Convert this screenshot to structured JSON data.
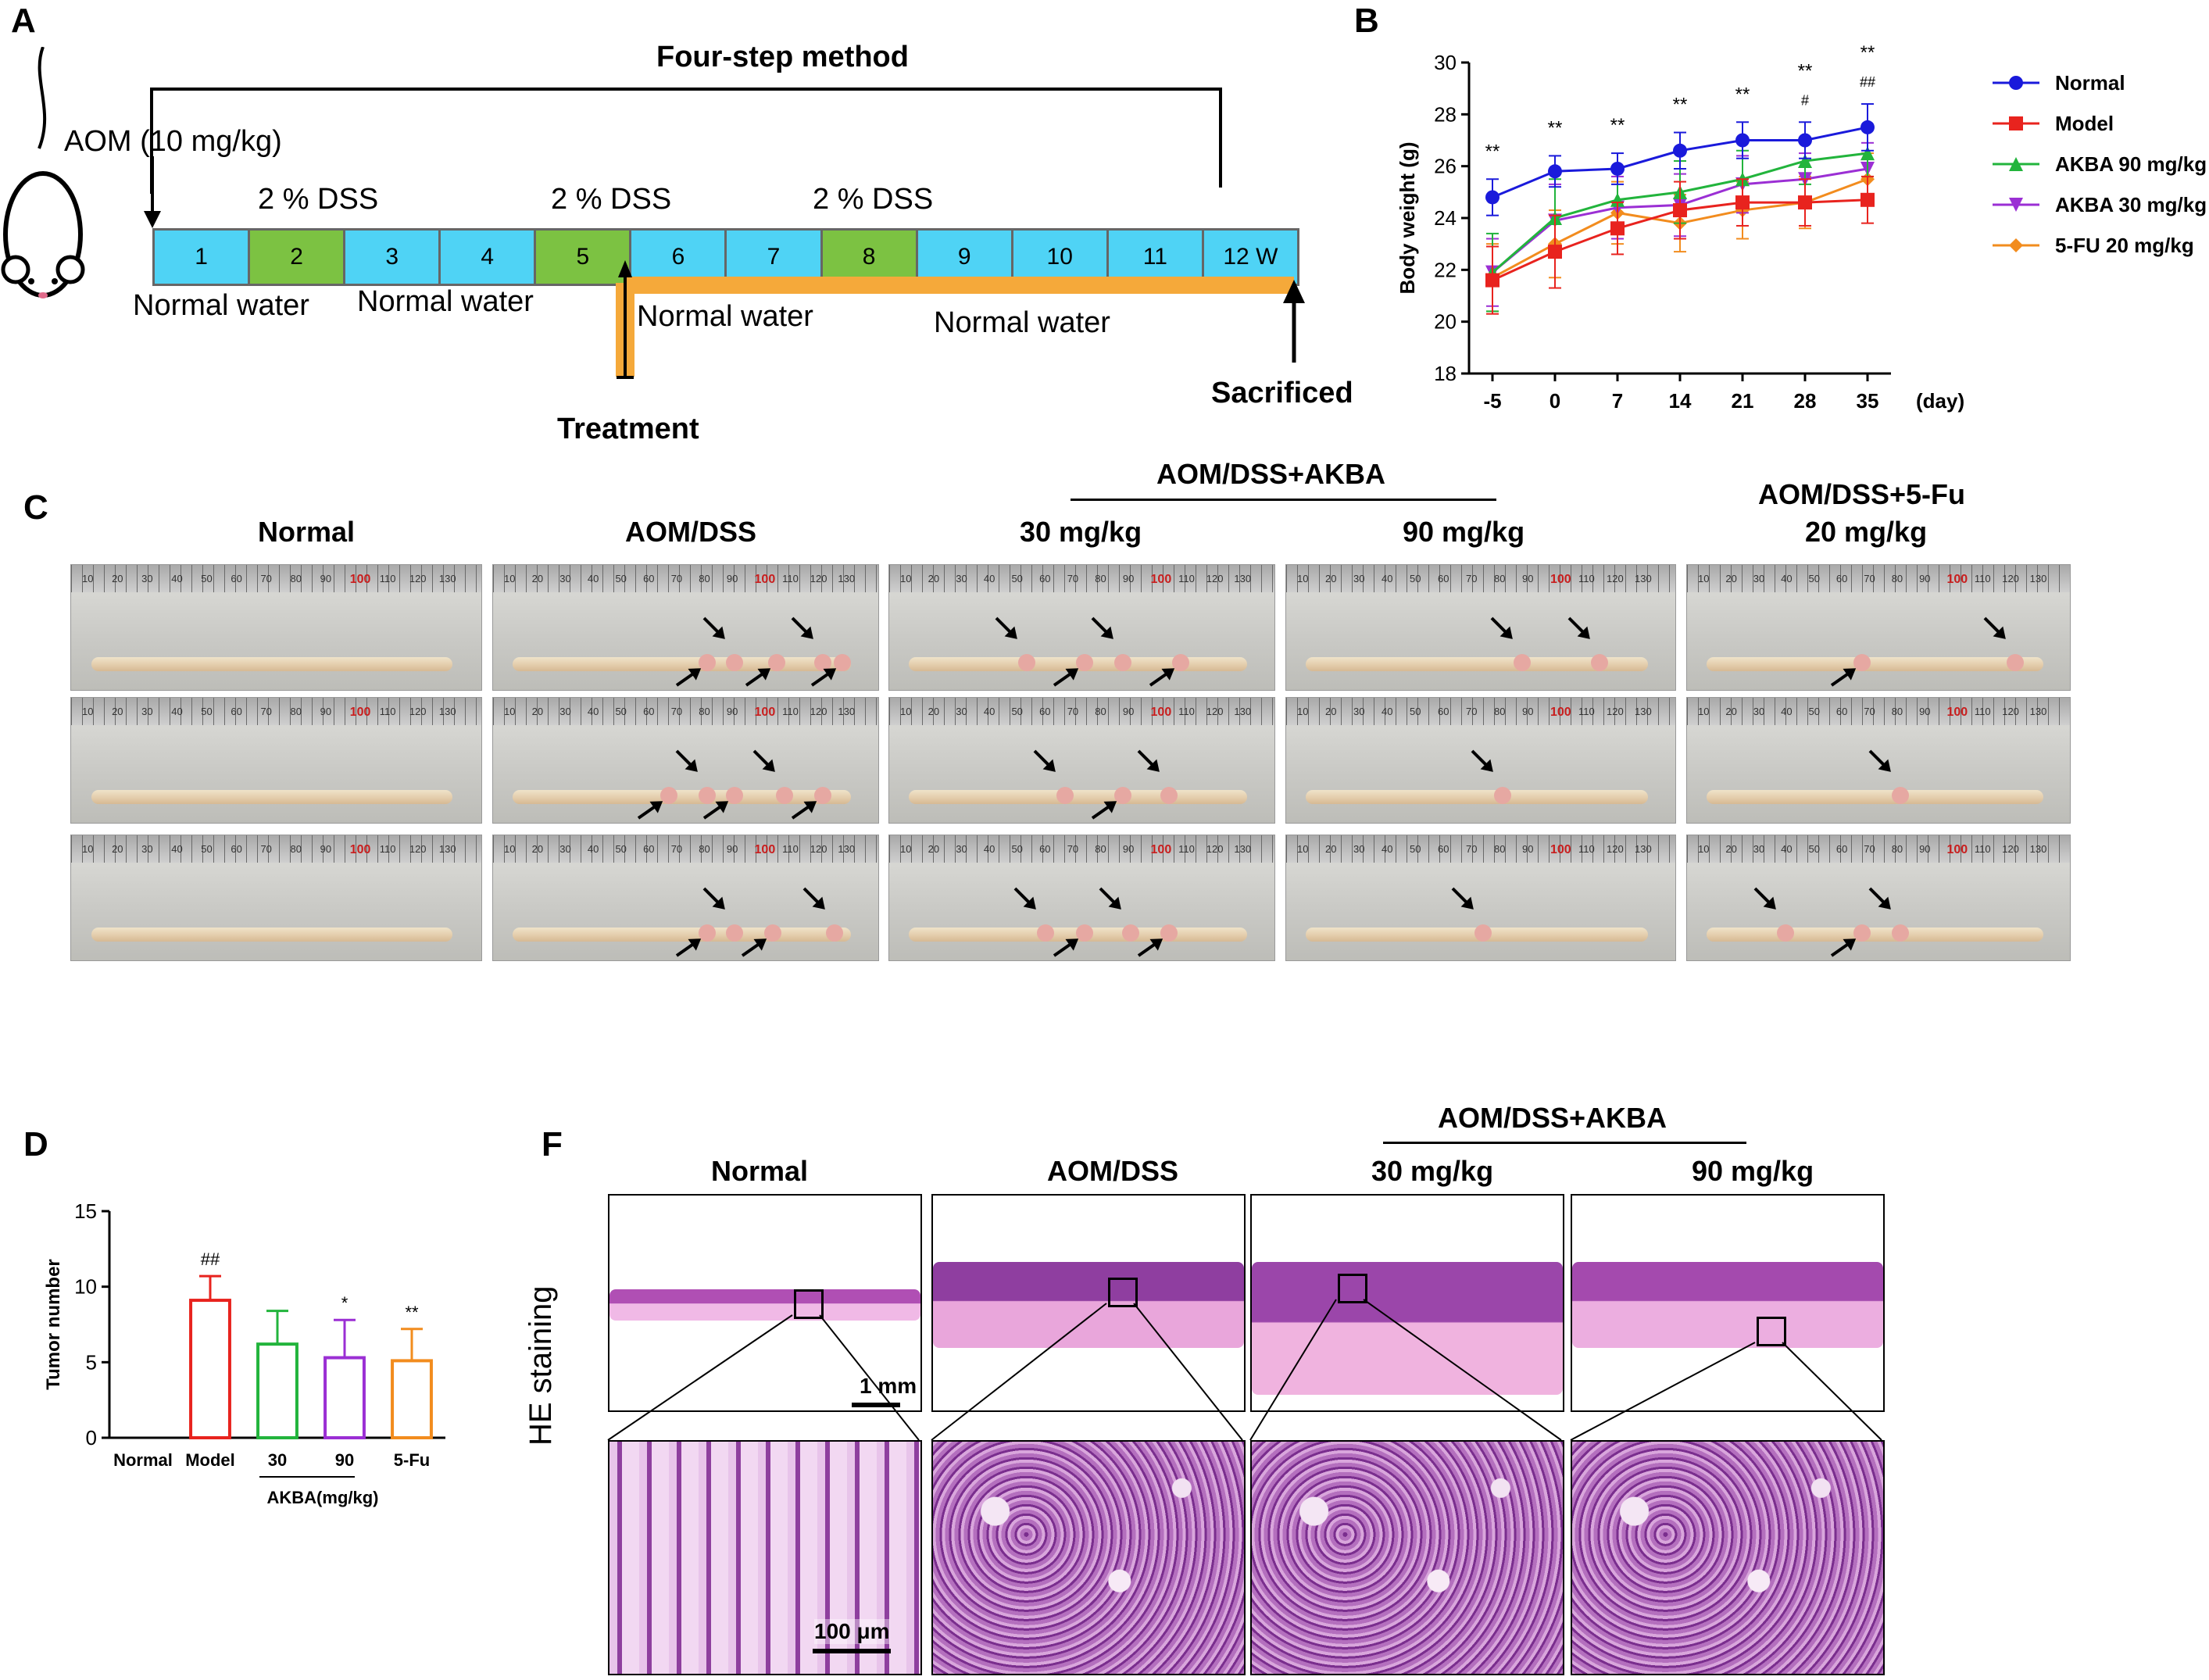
{
  "panelA": {
    "label": "A",
    "title": "Four-step method",
    "aom": "AOM (10 mg/kg)",
    "dss": [
      "2 % DSS",
      "2 % DSS",
      "2 % DSS"
    ],
    "weeks": [
      "1",
      "2",
      "3",
      "4",
      "5",
      "6",
      "7",
      "8",
      "9",
      "10",
      "11",
      "12 W"
    ],
    "water": [
      "Normal water",
      "Normal water",
      "Normal water",
      "Normal water"
    ],
    "treatment": "Treatment",
    "sacrificed": "Sacrificed",
    "colors": {
      "cyan": "#4fd3f5",
      "green": "#7cc242",
      "orange": "#f5a93a"
    }
  },
  "chart_data": [
    {
      "type": "line",
      "panel": "B",
      "title": "",
      "xlabel": "(day)",
      "ylabel": "Body weight (g)",
      "x": [
        "-5",
        "0",
        "7",
        "14",
        "21",
        "28",
        "35"
      ],
      "ylim": [
        18,
        30
      ],
      "yticks": [
        "18",
        "20",
        "22",
        "24",
        "26",
        "28",
        "30"
      ],
      "series": [
        {
          "name": "Normal",
          "color": "#1a1adb",
          "marker": "circle",
          "values": [
            24.8,
            25.8,
            25.9,
            26.6,
            27.0,
            27.0,
            27.5
          ],
          "err": [
            0.7,
            0.6,
            0.6,
            0.7,
            0.7,
            0.7,
            0.9
          ]
        },
        {
          "name": "Model",
          "color": "#e8231e",
          "marker": "square",
          "values": [
            21.6,
            22.7,
            23.6,
            24.3,
            24.6,
            24.6,
            24.7
          ],
          "err": [
            1.3,
            1.4,
            1.0,
            1.1,
            0.9,
            0.9,
            0.9
          ]
        },
        {
          "name": "AKBA 90 mg/kg",
          "color": "#22b43c",
          "marker": "triangle",
          "values": [
            21.9,
            24.0,
            24.7,
            25.0,
            25.5,
            26.2,
            26.5
          ],
          "err": [
            1.5,
            1.5,
            1.2,
            1.2,
            1.1,
            0.9,
            0.9
          ]
        },
        {
          "name": "AKBA 30 mg/kg",
          "color": "#9b2fd4",
          "marker": "triangle-down",
          "values": [
            21.9,
            23.9,
            24.4,
            24.5,
            25.3,
            25.5,
            25.9
          ],
          "err": [
            1.3,
            1.4,
            1.2,
            1.2,
            1.1,
            1.0,
            1.0
          ]
        },
        {
          "name": "5-FU 20 mg/kg",
          "color": "#f28c1e",
          "marker": "diamond",
          "values": [
            21.7,
            23.0,
            24.2,
            23.8,
            24.3,
            24.6,
            25.5
          ],
          "err": [
            1.3,
            1.3,
            1.2,
            1.1,
            1.1,
            1.0,
            1.0
          ]
        }
      ],
      "annotations": [
        "**",
        "**",
        "**",
        "**",
        "**",
        "**",
        "**"
      ],
      "annotations2": [
        "",
        "",
        "",
        "",
        "",
        "#",
        "##"
      ]
    },
    {
      "type": "bar",
      "panel": "D",
      "title": "",
      "xlabel": "AKBA(mg/kg)",
      "ylabel": "Tumor number",
      "categories": [
        "Normal",
        "Model",
        "30",
        "90",
        "5-Fu"
      ],
      "values": [
        0,
        9.1,
        6.2,
        5.3,
        5.1
      ],
      "err": [
        0,
        1.6,
        2.2,
        2.5,
        2.1
      ],
      "colors": [
        "#000000",
        "#e8231e",
        "#22b43c",
        "#9b2fd4",
        "#f28c1e"
      ],
      "ylim": [
        0,
        15
      ],
      "yticks": [
        "0",
        "5",
        "10",
        "15"
      ],
      "annotations": [
        "",
        "##",
        "",
        "*",
        "**"
      ]
    }
  ],
  "panelC": {
    "label": "C",
    "headers": [
      "Normal",
      "AOM/DSS",
      "30 mg/kg",
      "90 mg/kg"
    ],
    "akba_header": "AOM/DSS+AKBA",
    "fu_header1": "AOM/DSS+5-Fu",
    "fu_header2": "20 mg/kg",
    "ruler_nums": [
      "10",
      "20",
      "30",
      "40",
      "50",
      "60",
      "70",
      "80",
      "90",
      "100",
      "110",
      "120",
      "130"
    ]
  },
  "panelD": {
    "label": "D"
  },
  "panelF": {
    "label": "F",
    "akba_header": "AOM/DSS+AKBA",
    "headers": [
      "Normal",
      "AOM/DSS",
      "30 mg/kg",
      "90 mg/kg"
    ],
    "side_label": "HE staining",
    "scale_low": "1 mm",
    "scale_high": "100 μm"
  },
  "panelB": {
    "label": "B"
  }
}
